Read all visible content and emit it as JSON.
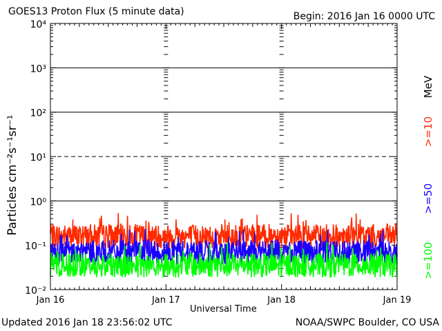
{
  "header": {
    "title": "GOES13 Proton Flux (5 minute data)",
    "begin": "Begin: 2016 Jan 16 0000 UTC"
  },
  "footer": {
    "updated": "Updated 2016 Jan 18 23:56:02 UTC",
    "credit": "NOAA/SWPC Boulder, CO USA"
  },
  "chart_data": {
    "type": "line",
    "title": "GOES13 Proton Flux (5 minute data)",
    "xlabel": "Universal Time",
    "ylabel": "Particles cm⁻²s⁻¹sr⁻¹",
    "y_scale": "log",
    "ylim": [
      0.01,
      10000
    ],
    "y_ticks": [
      {
        "value": 0.01,
        "label": "10⁻²"
      },
      {
        "value": 0.1,
        "label": "10⁻¹"
      },
      {
        "value": 1,
        "label": "10⁰"
      },
      {
        "value": 10,
        "label": "10¹"
      },
      {
        "value": 100,
        "label": "10²"
      },
      {
        "value": 1000,
        "label": "10³"
      },
      {
        "value": 10000,
        "label": "10⁴"
      }
    ],
    "x_ticks": [
      "Jan 16",
      "Jan 17",
      "Jan 18",
      "Jan 19"
    ],
    "xlim_days": [
      0,
      3
    ],
    "gridlines_solid": [
      1,
      100,
      1000
    ],
    "gridlines_dashed": [
      10
    ],
    "unit_label": "MeV",
    "series": [
      {
        "name": ">=10",
        "color": "#ff2a00",
        "base": 0.15,
        "spread": 0.55
      },
      {
        "name": ">=50",
        "color": "#1a00ff",
        "base": 0.065,
        "spread": 0.55
      },
      {
        "name": ">=100",
        "color": "#00ff00",
        "base": 0.033,
        "spread": 0.55
      }
    ]
  }
}
